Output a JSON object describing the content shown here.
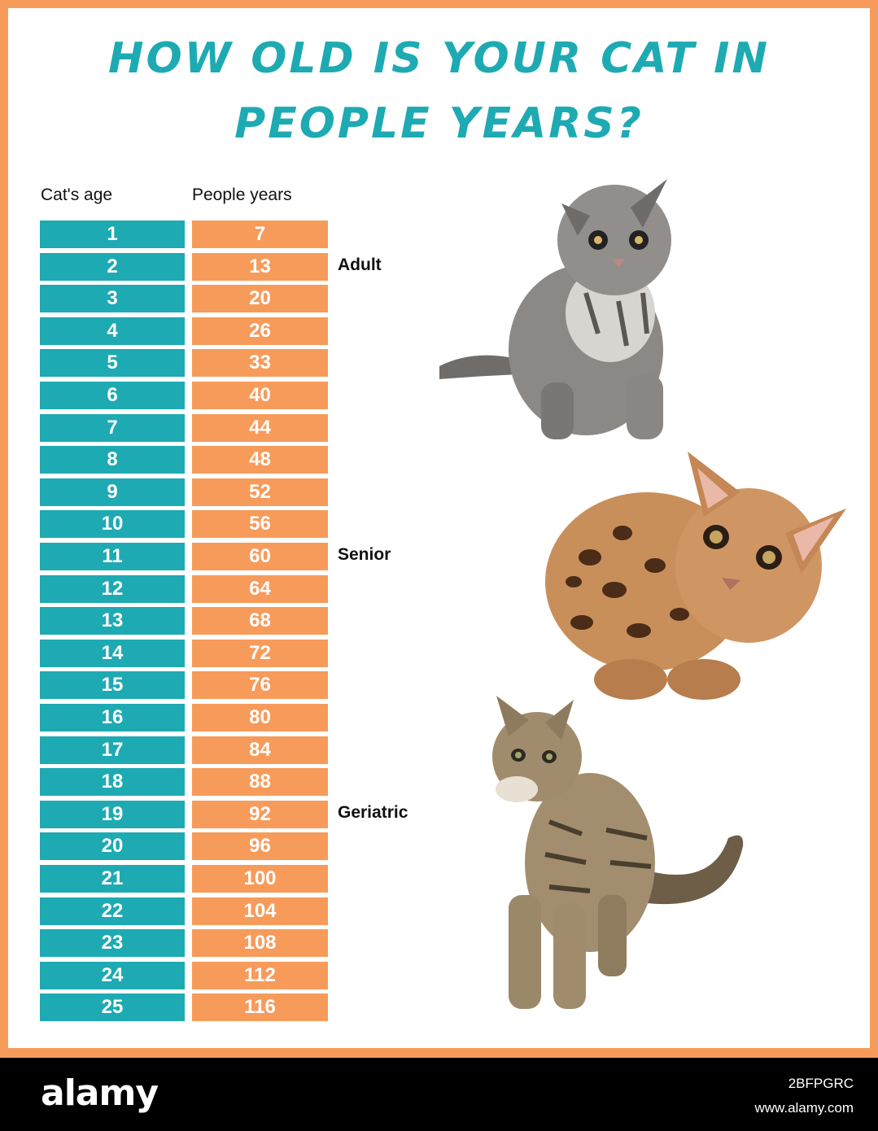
{
  "title": "HOW OLD IS YOUR CAT IN PEOPLE YEARS?",
  "title_lines": [
    "HOW OLD IS YOUR CAT IN",
    "PEOPLE YEARS?"
  ],
  "colors": {
    "teal": "#1eaab2",
    "orange": "#f79b5b",
    "border": "#f79b5b"
  },
  "chart_data": {
    "type": "table",
    "columns": [
      "Cat's age",
      "People years"
    ],
    "rows": [
      [
        1,
        7
      ],
      [
        2,
        13
      ],
      [
        3,
        20
      ],
      [
        4,
        26
      ],
      [
        5,
        33
      ],
      [
        6,
        40
      ],
      [
        7,
        44
      ],
      [
        8,
        48
      ],
      [
        9,
        52
      ],
      [
        10,
        56
      ],
      [
        11,
        60
      ],
      [
        12,
        64
      ],
      [
        13,
        68
      ],
      [
        14,
        72
      ],
      [
        15,
        76
      ],
      [
        16,
        80
      ],
      [
        17,
        84
      ],
      [
        18,
        88
      ],
      [
        19,
        92
      ],
      [
        20,
        96
      ],
      [
        21,
        100
      ],
      [
        22,
        104
      ],
      [
        23,
        108
      ],
      [
        24,
        112
      ],
      [
        25,
        116
      ]
    ],
    "stages": [
      {
        "label": "Adult",
        "cat_age": 2
      },
      {
        "label": "Senior",
        "cat_age": 11
      },
      {
        "label": "Geriatric",
        "cat_age": 19
      }
    ]
  },
  "images": [
    {
      "name": "fluffy-grey-kitten-photo"
    },
    {
      "name": "bengal-cat-photo"
    },
    {
      "name": "tabby-cat-photo"
    }
  ],
  "watermark": {
    "logo": "alamy",
    "image_id": "2BFPGRC",
    "url": "www.alamy.com"
  }
}
